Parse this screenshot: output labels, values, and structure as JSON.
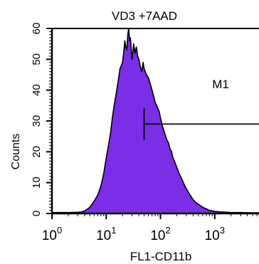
{
  "chart_data": {
    "type": "area",
    "title": "VD3 +7AAD",
    "xlabel": "FL1-CD11b",
    "ylabel": "Counts",
    "x_scale": "log",
    "xlim": [
      1,
      10000
    ],
    "ylim": [
      0,
      60
    ],
    "x_ticks": [
      {
        "base": "10",
        "exp": "0",
        "value": 1
      },
      {
        "base": "10",
        "exp": "1",
        "value": 10
      },
      {
        "base": "10",
        "exp": "2",
        "value": 100
      },
      {
        "base": "10",
        "exp": "3",
        "value": 1000
      },
      {
        "base": "10",
        "exp": "4",
        "value": 10000
      }
    ],
    "y_ticks": [
      {
        "label": "0",
        "value": 0
      },
      {
        "label": "10",
        "value": 10
      },
      {
        "label": "20",
        "value": 20
      },
      {
        "label": "30",
        "value": 30
      },
      {
        "label": "40",
        "value": 40
      },
      {
        "label": "50",
        "value": 50
      },
      {
        "label": "60",
        "value": 60
      }
    ],
    "grid": false,
    "fill_color": "#7a2ee6",
    "outline_color": "#000000",
    "series": [
      {
        "x": [
          1,
          2,
          3,
          3.5,
          4,
          5,
          6,
          7,
          8,
          9,
          10,
          11,
          12,
          13,
          14,
          15,
          16,
          17,
          18,
          19,
          20,
          21,
          22,
          23,
          24,
          25,
          26,
          27,
          28,
          29,
          30,
          32,
          34,
          36,
          38,
          40,
          42,
          45,
          48,
          50,
          55,
          60,
          65,
          70,
          75,
          80,
          85,
          90,
          95,
          100,
          110,
          120,
          130,
          140,
          150,
          160,
          170,
          180,
          190,
          200,
          220,
          250,
          280,
          300,
          350,
          400,
          450,
          500,
          600,
          700,
          800,
          1000,
          1300,
          1700,
          2000,
          3000,
          5000,
          10000
        ],
        "values": [
          0.3,
          0.3,
          0.4,
          0.5,
          0.8,
          2,
          4,
          6,
          9,
          13,
          18,
          22,
          26,
          31,
          35,
          38,
          41,
          44,
          47,
          48,
          49,
          52,
          56,
          54,
          53,
          58,
          60,
          56,
          57,
          53,
          50,
          55,
          52,
          54,
          51,
          50,
          48,
          46,
          49,
          47,
          45,
          44,
          42,
          40,
          38,
          36,
          35,
          34,
          33,
          31,
          28,
          26,
          24,
          23,
          21,
          20,
          18,
          17,
          16,
          15,
          13,
          11,
          9,
          8,
          6,
          4.5,
          3.5,
          3,
          2,
          1.5,
          1,
          0.7,
          0.5,
          0.4,
          0.3,
          0.3,
          0.2,
          0.2
        ]
      }
    ],
    "annotations": [
      {
        "label": "M1",
        "type": "gate",
        "x_start": 50,
        "x_end": 10000,
        "y": 29
      }
    ]
  }
}
